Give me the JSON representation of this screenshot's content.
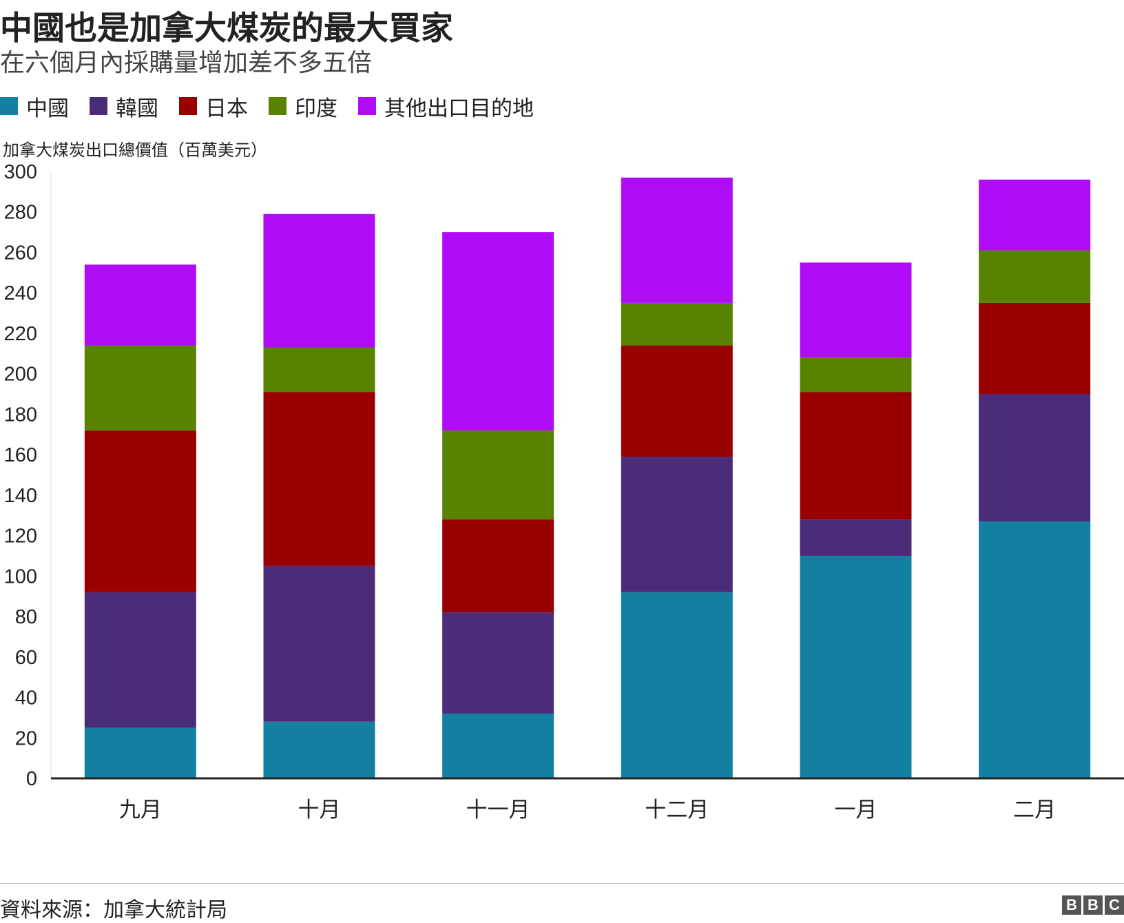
{
  "title": "中國也是加拿大煤炭的最大買家",
  "subtitle": "在六個月內採購量增加差不多五倍",
  "source": "資料來源：加拿大統計局",
  "logo": [
    "B",
    "B",
    "C"
  ],
  "chart_data": {
    "type": "bar",
    "stacked": true,
    "ylabel": "加拿大煤炭出口總價值（百萬美元）",
    "ylim": [
      0,
      300
    ],
    "yticks": [
      0,
      20,
      40,
      60,
      80,
      100,
      120,
      140,
      160,
      180,
      200,
      220,
      240,
      260,
      280,
      300
    ],
    "categories": [
      "九月",
      "十月",
      "十一月",
      "十二月",
      "一月",
      "二月"
    ],
    "legend_position": "top-left",
    "series": [
      {
        "name": "中國",
        "color": "#1380a1",
        "values": [
          25,
          28,
          32,
          92,
          110,
          127
        ]
      },
      {
        "name": "韓國",
        "color": "#4b2c79",
        "values": [
          67,
          77,
          50,
          67,
          18,
          63
        ]
      },
      {
        "name": "日本",
        "color": "#990000",
        "values": [
          80,
          86,
          46,
          55,
          63,
          45
        ]
      },
      {
        "name": "印度",
        "color": "#588300",
        "values": [
          42,
          22,
          44,
          21,
          17,
          26
        ]
      },
      {
        "name": "其他出口目的地",
        "color": "#b00cf8",
        "values": [
          40,
          66,
          98,
          62,
          47,
          35
        ]
      }
    ]
  }
}
